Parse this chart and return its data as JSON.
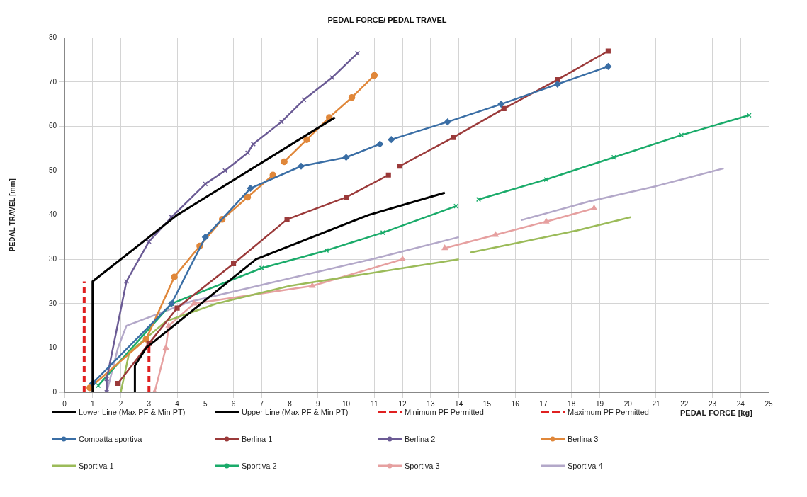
{
  "chart_data": {
    "type": "line",
    "title": "PEDAL FORCE/ PEDAL TRAVEL",
    "xlabel": "PEDAL FORCE [kg]",
    "ylabel": "PEDAL TRAVEL [mm]",
    "xlim": [
      0,
      25
    ],
    "xticks": [
      0,
      1,
      2,
      3,
      4,
      5,
      6,
      7,
      8,
      9,
      10,
      11,
      12,
      13,
      14,
      15,
      16,
      17,
      18,
      19,
      20,
      21,
      22,
      23,
      24,
      25
    ],
    "ylim": [
      0,
      80
    ],
    "yticks": [
      0,
      10,
      20,
      30,
      40,
      50,
      60,
      70,
      80
    ],
    "grid": true,
    "legend": "bottom",
    "series": [
      {
        "name": "Lower Line (Max PF & Min PT)",
        "color": "#000000",
        "marker": "none",
        "x": [
          2.5,
          2.5,
          2.9,
          6.8,
          10.8,
          13.5
        ],
        "values": [
          0,
          6,
          10,
          30,
          40,
          45
        ]
      },
      {
        "name": "Upper Line (Max PF & Min PT)",
        "color": "#000000",
        "marker": "none",
        "x": [
          1,
          1,
          4,
          9.6
        ],
        "values": [
          0,
          25,
          40,
          62
        ]
      },
      {
        "name": "Minimum PF Permitted",
        "color": "#e02020",
        "marker": "none",
        "line_style": "dashed",
        "x": [
          0.7,
          0.7
        ],
        "values": [
          0,
          25
        ]
      },
      {
        "name": "Maximum PF Permitted",
        "color": "#e02020",
        "marker": "none",
        "line_style": "dashed",
        "x": [
          3,
          3
        ],
        "values": [
          0,
          11
        ]
      },
      {
        "name": "Compatta sportiva",
        "color": "#3a6ea5",
        "marker": "diamond",
        "x": [
          1,
          3.8,
          5,
          6.6,
          8.4,
          10,
          11.2,
          11.4,
          11.6,
          13.6,
          15.5,
          17.5,
          19.3
        ],
        "values": [
          2,
          20,
          35,
          46,
          51,
          53,
          56,
          null,
          57,
          61,
          65,
          69.5,
          73.5
        ]
      },
      {
        "name": "Berlina 1",
        "color": "#9b3a3a",
        "marker": "square",
        "x": [
          1.9,
          3,
          4,
          6,
          7.9,
          10,
          11.5,
          11.7,
          11.9,
          13.8,
          15.6,
          17.5,
          19.3
        ],
        "values": [
          2,
          11,
          19,
          29,
          39,
          44,
          49,
          null,
          51,
          57.5,
          64,
          70.5,
          77
        ]
      },
      {
        "name": "Berlina 2",
        "color": "#6b5b95",
        "marker": "cross",
        "x": [
          1.5,
          1.5,
          2.2,
          3,
          3.8,
          5,
          5.7,
          6.5,
          6.7,
          7.7,
          8.5,
          9.5,
          10.4
        ],
        "values": [
          0,
          3,
          25,
          34,
          39.5,
          47,
          50,
          54,
          56,
          61,
          66,
          71,
          76.5
        ]
      },
      {
        "name": "Berlina 3",
        "color": "#e0873a",
        "marker": "circle",
        "x": [
          0.9,
          2.9,
          3.9,
          4.8,
          5.6,
          6.5,
          7.4,
          7.6,
          7.8,
          8.6,
          9.4,
          10.2,
          11
        ],
        "values": [
          1,
          12,
          26,
          33,
          39,
          44,
          49,
          null,
          52,
          57,
          62,
          66.5,
          71.5
        ]
      },
      {
        "name": "Sportiva 1",
        "color": "#9bbb59",
        "marker": "none",
        "x": [
          2,
          2.3,
          3.6,
          5.4,
          8,
          14,
          14.2,
          14.4,
          16.3,
          18.2,
          20.1
        ],
        "values": [
          0,
          9,
          16,
          20,
          24,
          30,
          null,
          31.5,
          34,
          36.5,
          39.5
        ]
      },
      {
        "name": "Sportiva 2",
        "color": "#1aab6a",
        "marker": "cross",
        "x": [
          1.2,
          3.8,
          7,
          9.3,
          11.3,
          13.9,
          14.3,
          14.7,
          17.1,
          19.5,
          21.9,
          24.3
        ],
        "values": [
          1.5,
          20,
          28,
          32,
          36,
          42,
          null,
          43.5,
          48,
          53,
          58,
          62.5
        ]
      },
      {
        "name": "Sportiva 3",
        "color": "#e6a0a0",
        "marker": "triangle",
        "x": [
          3.2,
          3.6,
          3.7,
          4.6,
          8.8,
          12,
          12.8,
          13.5,
          15.3,
          17.1,
          18.8
        ],
        "values": [
          0,
          10,
          15,
          20,
          24,
          30,
          null,
          32.5,
          35.5,
          38.5,
          41.5
        ]
      },
      {
        "name": "Sportiva 4",
        "color": "#b3a8c9",
        "marker": "none",
        "x": [
          1.5,
          1.9,
          2.2,
          4.5,
          10.9,
          14,
          15.1,
          16.2,
          18.6,
          21,
          23.4
        ],
        "values": [
          0,
          10,
          15,
          20.5,
          30,
          35,
          null,
          38.8,
          43,
          46.5,
          50.5
        ]
      }
    ]
  }
}
